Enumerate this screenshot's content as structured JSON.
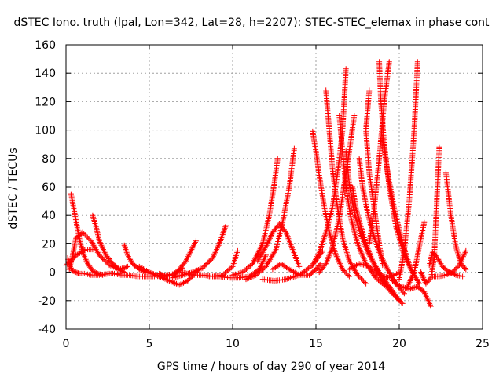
{
  "chart_data": {
    "type": "scatter",
    "title": "dSTEC Iono. truth (lpal, Lon=342, Lat=28, h=2207): STEC-STEC_elemax in phase cont",
    "xlabel": "GPS time / hours of day 290 of year 2014",
    "ylabel": "dSTEC  / TECUs",
    "xlim": [
      0,
      25
    ],
    "ylim": [
      -40,
      160
    ],
    "xticks": [
      0,
      5,
      10,
      15,
      20,
      25
    ],
    "yticks": [
      -40,
      -20,
      0,
      20,
      40,
      60,
      80,
      100,
      120,
      140,
      160
    ],
    "grid": true,
    "marker": "plus",
    "color": "#ff0000",
    "series": [
      {
        "x": [
          0.0,
          0.3,
          0.6,
          0.9,
          1.2,
          1.6
        ],
        "y": [
          5,
          8,
          12,
          14,
          16,
          16
        ]
      },
      {
        "x": [
          0.2,
          0.4,
          0.6,
          1.0,
          1.5,
          2.0,
          2.6,
          3.2,
          3.7
        ],
        "y": [
          2,
          12,
          24,
          28,
          22,
          12,
          5,
          2,
          4
        ]
      },
      {
        "x": [
          0.1,
          0.25,
          0.4,
          0.6,
          0.8,
          1.1,
          1.5,
          2.0,
          2.6,
          3.2
        ],
        "y": [
          10,
          4,
          1,
          0,
          -1,
          -1,
          -2,
          -2,
          -1,
          -1
        ]
      },
      {
        "x": [
          0.3,
          0.45,
          0.6,
          0.8,
          1.0,
          1.3,
          1.6,
          1.9,
          2.2
        ],
        "y": [
          55,
          46,
          36,
          24,
          14,
          6,
          1,
          -1,
          -2
        ]
      },
      {
        "x": [
          1.6,
          1.8,
          2.0,
          2.4,
          2.8,
          3.2,
          3.5
        ],
        "y": [
          40,
          32,
          22,
          12,
          6,
          2,
          0
        ]
      },
      {
        "x": [
          3.5,
          3.7,
          4.0,
          4.4,
          4.8,
          5.2
        ],
        "y": [
          19,
          12,
          6,
          2,
          0,
          -1
        ]
      },
      {
        "x": [
          2.8,
          3.3,
          3.8,
          4.3,
          4.8,
          5.4,
          6.0,
          6.6,
          7.0
        ],
        "y": [
          -1,
          -2,
          -2,
          -3,
          -3,
          -3,
          -2,
          -1,
          3
        ]
      },
      {
        "x": [
          4.4,
          5.0,
          5.6,
          6.2,
          6.8,
          7.3,
          7.9
        ],
        "y": [
          4,
          0,
          -3,
          -6,
          -9,
          -6,
          1
        ]
      },
      {
        "x": [
          5.6,
          6.0,
          6.4,
          6.8,
          7.2,
          7.5,
          7.8
        ],
        "y": [
          -1,
          -3,
          -2,
          2,
          8,
          15,
          22
        ]
      },
      {
        "x": [
          6.4,
          7.0,
          7.6,
          8.2,
          8.8,
          9.2,
          9.6
        ],
        "y": [
          -4,
          -2,
          0,
          3,
          10,
          20,
          33
        ]
      },
      {
        "x": [
          7.0,
          7.6,
          8.2,
          8.8,
          9.4,
          10.0,
          10.3
        ],
        "y": [
          0,
          -2,
          -2,
          -3,
          -2,
          4,
          15
        ]
      },
      {
        "x": [
          8.6,
          9.2,
          9.8,
          10.4,
          11.0,
          11.6,
          12.0
        ],
        "y": [
          -3,
          -3,
          -4,
          -4,
          -3,
          2,
          12
        ]
      },
      {
        "x": [
          10.0,
          10.6,
          11.2,
          11.8,
          12.2,
          12.5,
          12.7
        ],
        "y": [
          -2,
          0,
          6,
          20,
          40,
          62,
          80
        ]
      },
      {
        "x": [
          10.8,
          11.4,
          12.0,
          12.6,
          13.0,
          13.4,
          13.7
        ],
        "y": [
          -5,
          -2,
          4,
          16,
          35,
          60,
          87
        ]
      },
      {
        "x": [
          11.5,
          12.0,
          12.4,
          12.8,
          13.2,
          13.6,
          14.0
        ],
        "y": [
          8,
          18,
          28,
          34,
          28,
          16,
          4
        ]
      },
      {
        "x": [
          11.8,
          12.5,
          13.2,
          14.0,
          14.8,
          15.4
        ],
        "y": [
          -5,
          -6,
          -5,
          -2,
          5,
          15
        ]
      },
      {
        "x": [
          12.4,
          12.9,
          13.4,
          14.0,
          14.6,
          15.0,
          15.3
        ],
        "y": [
          2,
          6,
          2,
          -2,
          -2,
          2,
          6
        ]
      },
      {
        "x": [
          14.8,
          15.0,
          15.2,
          15.5,
          15.8,
          16.2,
          16.6,
          17.0
        ],
        "y": [
          99,
          85,
          68,
          46,
          28,
          12,
          2,
          -3
        ]
      },
      {
        "x": [
          14.8,
          15.2,
          15.6,
          16.0,
          16.3,
          16.6,
          16.8
        ],
        "y": [
          5,
          14,
          28,
          46,
          70,
          100,
          143
        ]
      },
      {
        "x": [
          15.6,
          15.8,
          16.0,
          16.3,
          16.6,
          17.0,
          17.5,
          18.0
        ],
        "y": [
          128,
          100,
          72,
          45,
          24,
          8,
          -2,
          -8
        ]
      },
      {
        "x": [
          15.2,
          15.6,
          16.0,
          16.4,
          16.7,
          17.0,
          17.3
        ],
        "y": [
          0,
          6,
          18,
          38,
          62,
          85,
          110
        ]
      },
      {
        "x": [
          16.4,
          16.6,
          16.8,
          17.1,
          17.5,
          18.0,
          18.6,
          19.2
        ],
        "y": [
          110,
          85,
          60,
          38,
          20,
          6,
          -4,
          -10
        ]
      },
      {
        "x": [
          16.8,
          17.0,
          17.3,
          17.7,
          18.2,
          18.8,
          19.4,
          20.0
        ],
        "y": [
          85,
          62,
          42,
          26,
          12,
          0,
          -10,
          -20
        ]
      },
      {
        "x": [
          17.2,
          17.4,
          17.7,
          18.0,
          18.4,
          18.9,
          19.5,
          20.2
        ],
        "y": [
          60,
          45,
          32,
          20,
          8,
          -4,
          -14,
          -22
        ]
      },
      {
        "x": [
          17.6,
          17.8,
          18.1,
          18.4,
          18.8,
          19.3,
          19.8,
          20.3
        ],
        "y": [
          80,
          60,
          42,
          28,
          14,
          2,
          -8,
          -15
        ]
      },
      {
        "x": [
          18.2,
          18.0,
          18.2,
          18.5,
          18.8,
          19.0
        ],
        "y": [
          128,
          100,
          70,
          45,
          20,
          5
        ]
      },
      {
        "x": [
          18.8,
          18.9,
          19.1,
          19.4,
          19.8,
          20.3,
          20.8
        ],
        "y": [
          148,
          120,
          90,
          60,
          32,
          12,
          0
        ]
      },
      {
        "x": [
          18.2,
          18.5,
          18.8,
          19.1,
          19.4
        ],
        "y": [
          20,
          45,
          80,
          120,
          148
        ]
      },
      {
        "x": [
          19.0,
          19.3,
          19.7,
          20.2,
          20.7,
          21.2
        ],
        "y": [
          95,
          70,
          45,
          20,
          2,
          -8
        ]
      },
      {
        "x": [
          20.0,
          20.3,
          20.6,
          20.9,
          21.1
        ],
        "y": [
          -5,
          15,
          50,
          100,
          148
        ]
      },
      {
        "x": [
          19.6,
          20.1,
          20.6,
          21.1,
          21.5,
          21.9
        ],
        "y": [
          -6,
          -10,
          -12,
          -10,
          -14,
          -24
        ]
      },
      {
        "x": [
          20.5,
          20.9,
          21.2,
          21.5
        ],
        "y": [
          -10,
          0,
          18,
          35
        ]
      },
      {
        "x": [
          21.3,
          21.6,
          21.9,
          22.1,
          22.4
        ],
        "y": [
          0,
          -8,
          -4,
          10,
          88
        ]
      },
      {
        "x": [
          21.8,
          22.0,
          22.3,
          22.6,
          23.0,
          23.4,
          23.8
        ],
        "y": [
          5,
          14,
          10,
          4,
          0,
          -2,
          -3
        ]
      },
      {
        "x": [
          22.8,
          23.1,
          23.4,
          23.7,
          24.0
        ],
        "y": [
          70,
          40,
          18,
          6,
          2
        ]
      },
      {
        "x": [
          22.0,
          22.4,
          22.8,
          23.2,
          23.6,
          24.0
        ],
        "y": [
          -3,
          -3,
          -2,
          0,
          5,
          15
        ]
      },
      {
        "x": [
          17.0,
          17.6,
          18.2,
          18.8,
          19.4,
          20.0
        ],
        "y": [
          2,
          6,
          4,
          -2,
          -4,
          0
        ]
      }
    ]
  }
}
